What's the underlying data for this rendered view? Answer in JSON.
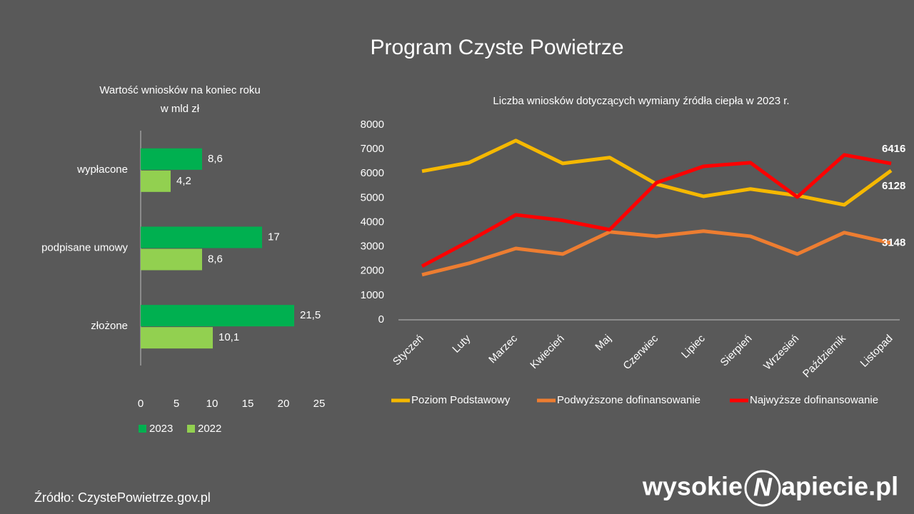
{
  "title": "Program Czyste Powietrze",
  "source": "Źródło: CzystePowietrze.gov.pl",
  "logo": {
    "left": "wysokie",
    "mark": "N",
    "right": "apiecie.pl"
  },
  "chart_data": [
    {
      "type": "hbar",
      "title": "Wartość wniosków na koniec roku",
      "subtitle": "w mld zł",
      "categories": [
        "wypłacone",
        "podpisane umowy",
        "złożone"
      ],
      "series": [
        {
          "name": "2023",
          "color": "#00b050",
          "values": [
            8.6,
            17,
            21.5
          ],
          "value_labels": [
            "8,6",
            "17",
            "21,5"
          ]
        },
        {
          "name": "2022",
          "color": "#92d050",
          "values": [
            4.2,
            8.6,
            10.1
          ],
          "value_labels": [
            "4,2",
            "8,6",
            "10,1"
          ]
        }
      ],
      "xlim": [
        0,
        25
      ],
      "xticks": [
        0,
        5,
        10,
        15,
        20,
        25
      ],
      "legend": "bottom"
    },
    {
      "type": "line",
      "title": "Liczba wniosków  dotyczących wymiany źródła ciepła w 2023 r.",
      "categories": [
        "Styczeń",
        "Luty",
        "Marzec",
        "Kwiecień",
        "Maj",
        "Czerwiec",
        "Lipiec",
        "Sierpień",
        "Wrzesień",
        "Październik",
        "Listopad"
      ],
      "series": [
        {
          "name": "Poziom Podstawowy",
          "color": "#f5b800",
          "values": [
            6100,
            6450,
            7360,
            6420,
            6660,
            5570,
            5070,
            5370,
            5100,
            4720,
            6128
          ]
        },
        {
          "name": "Podwyższone dofinansowanie",
          "color": "#ed7d31",
          "values": [
            1850,
            2320,
            2930,
            2700,
            3610,
            3430,
            3640,
            3430,
            2700,
            3580,
            3148
          ]
        },
        {
          "name": "Najwyższe dofinansowanie",
          "color": "#ff0000",
          "values": [
            2200,
            3230,
            4310,
            4080,
            3700,
            5630,
            6300,
            6450,
            5040,
            6770,
            6416
          ]
        }
      ],
      "ylim": [
        0,
        8000
      ],
      "yticks": [
        0,
        1000,
        2000,
        3000,
        4000,
        5000,
        6000,
        7000,
        8000
      ],
      "label_last": true,
      "legend": "bottom"
    }
  ]
}
